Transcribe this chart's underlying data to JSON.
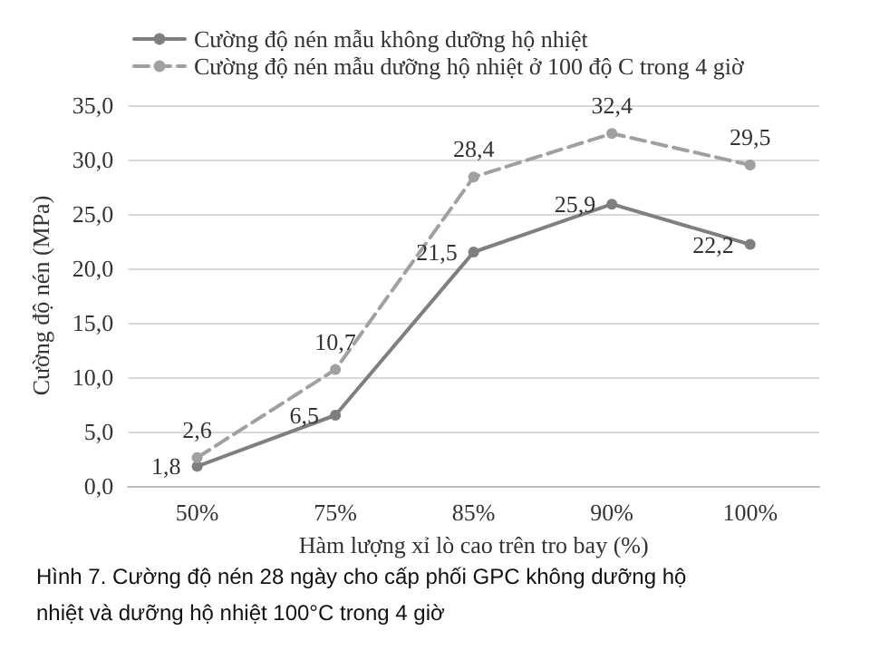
{
  "chart_data": {
    "type": "line",
    "xlabel": "Hàm lượng xỉ lò cao trên tro bay (%)",
    "ylabel": "Cường độ nén (MPa)",
    "categories": [
      "50%",
      "75%",
      "85%",
      "90%",
      "100%"
    ],
    "series": [
      {
        "name": "Cường độ nén mẫu không dưỡng hộ nhiệt",
        "color": "#7f7f7f",
        "line_style": "solid",
        "values": [
          1.8,
          6.5,
          21.5,
          25.9,
          22.2
        ],
        "value_labels": [
          "1,8",
          "6,5",
          "21,5",
          "25,9",
          "22,2"
        ]
      },
      {
        "name": "Cường độ nén mẫu dưỡng hộ nhiệt ở 100 độ C trong 4 giờ",
        "color": "#a0a0a0",
        "line_style": "dashed",
        "values": [
          2.6,
          10.7,
          28.4,
          32.4,
          29.5
        ],
        "value_labels": [
          "2,6",
          "10,7",
          "28,4",
          "32,4",
          "29,5"
        ]
      }
    ],
    "ylim": [
      0,
      35
    ],
    "yticks": [
      {
        "value": 0,
        "label": "0,0"
      },
      {
        "value": 5,
        "label": "5,0"
      },
      {
        "value": 10,
        "label": "10,0"
      },
      {
        "value": 15,
        "label": "15,0"
      },
      {
        "value": 20,
        "label": "20,0"
      },
      {
        "value": 25,
        "label": "25,0"
      },
      {
        "value": 30,
        "label": "30,0"
      },
      {
        "value": 35,
        "label": "35,0"
      }
    ],
    "grid": "y",
    "legend": "top left",
    "marker": "circle",
    "annotations": [
      "Hình 7. Cường độ nén 28 ngày cho cấp phối GPC không dưỡng hộ nhiệt và dưỡng hộ nhiệt 100°C trong 4 giờ"
    ]
  }
}
